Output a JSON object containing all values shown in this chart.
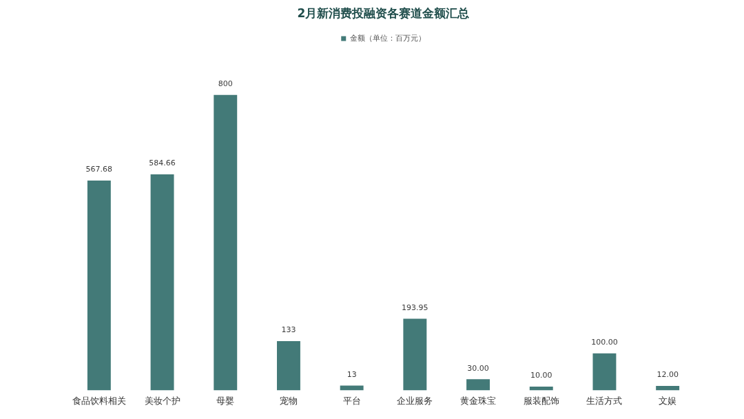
{
  "chart_data": {
    "type": "bar",
    "title": "2月新消费投融资各赛道金额汇总",
    "categories": [
      "食品饮料相关",
      "美妆个护",
      "母婴",
      "宠物",
      "平台",
      "企业服务",
      "黄金珠宝",
      "服装配饰",
      "生活方式",
      "文娱"
    ],
    "series": [
      {
        "name": "金额（单位：百万元）",
        "color": "#437a78",
        "values": [
          567.68,
          584.66,
          800,
          133,
          13,
          193.95,
          30,
          10,
          100,
          12
        ],
        "value_labels": [
          "567.68",
          "584.66",
          "800",
          "133",
          "13",
          "193.95",
          "30.00",
          "10.00",
          "100.00",
          "12.00"
        ]
      }
    ],
    "legend": "top",
    "tick_labels": "x"
  }
}
